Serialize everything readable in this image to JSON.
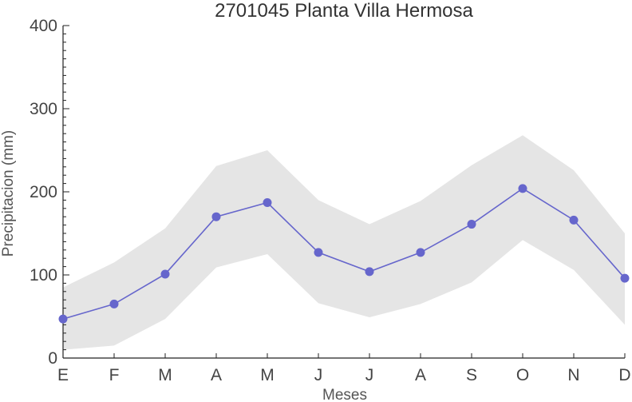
{
  "chart_data": {
    "type": "line",
    "title": "2701045 Planta Villa Hermosa",
    "xlabel": "Meses",
    "ylabel": "Precipitacion (mm)",
    "categories": [
      "E",
      "F",
      "M",
      "A",
      "M",
      "J",
      "J",
      "A",
      "S",
      "O",
      "N",
      "D"
    ],
    "ylim": [
      0,
      400
    ],
    "yticks": [
      0,
      100,
      200,
      300,
      400
    ],
    "series": [
      {
        "values": [
          47,
          65,
          101,
          170,
          187,
          127,
          104,
          127,
          161,
          204,
          166,
          96
        ]
      }
    ],
    "band_upper": [
      85,
      115,
      156,
      231,
      250,
      190,
      161,
      189,
      232,
      268,
      226,
      150
    ],
    "band_lower": [
      10,
      15,
      47,
      109,
      125,
      66,
      49,
      65,
      91,
      142,
      106,
      40
    ],
    "grid": false,
    "colors": {
      "line": "#6666cc",
      "marker": "#6666cc",
      "band": "#e5e5e5",
      "axis": "#222222"
    }
  }
}
